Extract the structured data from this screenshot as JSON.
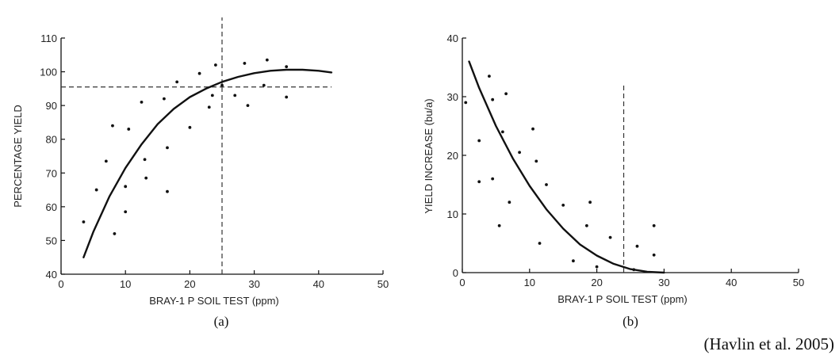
{
  "citation": "(Havlin et al. 2005)",
  "chart_data": [
    {
      "type": "scatter",
      "panel_label": "(a)",
      "xlabel": "BRAY-1 P SOIL TEST (ppm)",
      "ylabel": "PERCENTAGE YIELD",
      "xlim": [
        0,
        50
      ],
      "ylim": [
        40,
        110
      ],
      "xticks": [
        0,
        10,
        20,
        30,
        40,
        50
      ],
      "yticks": [
        40,
        50,
        60,
        70,
        80,
        90,
        100,
        110
      ],
      "grid": false,
      "points": [
        [
          3.5,
          55.5
        ],
        [
          5.5,
          65
        ],
        [
          7,
          73.5
        ],
        [
          8,
          84
        ],
        [
          8.3,
          52
        ],
        [
          10,
          66
        ],
        [
          10,
          58.5
        ],
        [
          10.5,
          83
        ],
        [
          12.5,
          91
        ],
        [
          13,
          74
        ],
        [
          13.2,
          68.5
        ],
        [
          16,
          92
        ],
        [
          16.5,
          77.5
        ],
        [
          16.5,
          64.5
        ],
        [
          18,
          97
        ],
        [
          20,
          83.5
        ],
        [
          21.5,
          99.5
        ],
        [
          23,
          89.5
        ],
        [
          23.5,
          93
        ],
        [
          24,
          102
        ],
        [
          25,
          96
        ],
        [
          27,
          93
        ],
        [
          28.5,
          102.5
        ],
        [
          29,
          90
        ],
        [
          31.5,
          96
        ],
        [
          32,
          103.5
        ],
        [
          35,
          101.5
        ],
        [
          35,
          92.5
        ]
      ],
      "curve": [
        [
          3.5,
          45
        ],
        [
          5,
          52.5
        ],
        [
          7.5,
          63
        ],
        [
          10,
          71.5
        ],
        [
          12.5,
          78.5
        ],
        [
          15,
          84.5
        ],
        [
          17.5,
          89
        ],
        [
          20,
          92.5
        ],
        [
          22.5,
          95
        ],
        [
          25,
          97
        ],
        [
          27.5,
          98.5
        ],
        [
          30,
          99.6
        ],
        [
          32.5,
          100.3
        ],
        [
          35,
          100.6
        ],
        [
          37.5,
          100.6
        ],
        [
          40,
          100.3
        ],
        [
          42,
          99.8
        ]
      ],
      "reference_lines": {
        "x": 25,
        "y": 95.5
      }
    },
    {
      "type": "scatter",
      "panel_label": "(b)",
      "xlabel": "BRAY-1 P SOIL TEST (ppm)",
      "ylabel": "YIELD INCREASE (bu/a)",
      "xlim": [
        0,
        50
      ],
      "ylim": [
        0,
        40
      ],
      "xticks": [
        0,
        10,
        20,
        30,
        40,
        50
      ],
      "yticks": [
        0,
        10,
        20,
        30,
        40
      ],
      "grid": false,
      "points": [
        [
          0.5,
          29
        ],
        [
          2.5,
          22.5
        ],
        [
          2.5,
          15.5
        ],
        [
          4,
          33.5
        ],
        [
          4.5,
          29.5
        ],
        [
          4.5,
          16
        ],
        [
          5.5,
          8
        ],
        [
          6,
          24
        ],
        [
          6.5,
          30.5
        ],
        [
          7,
          12
        ],
        [
          8.5,
          20.5
        ],
        [
          10.5,
          24.5
        ],
        [
          11,
          19
        ],
        [
          11.5,
          5
        ],
        [
          12.5,
          15
        ],
        [
          15,
          11.5
        ],
        [
          16.5,
          2
        ],
        [
          18.5,
          8
        ],
        [
          19,
          12
        ],
        [
          20,
          1
        ],
        [
          22,
          6
        ],
        [
          25.5,
          0.5
        ],
        [
          26,
          4.5
        ],
        [
          28.5,
          8
        ],
        [
          28.5,
          3
        ]
      ],
      "curve": [
        [
          1,
          36
        ],
        [
          2.5,
          31.5
        ],
        [
          5,
          25
        ],
        [
          7.5,
          19.5
        ],
        [
          10,
          14.8
        ],
        [
          12.5,
          10.8
        ],
        [
          15,
          7.5
        ],
        [
          17.5,
          4.8
        ],
        [
          20,
          2.9
        ],
        [
          22.5,
          1.5
        ],
        [
          25,
          0.6
        ],
        [
          27.5,
          0.15
        ],
        [
          30,
          0
        ]
      ],
      "reference_lines": {
        "x": 24
      }
    }
  ]
}
